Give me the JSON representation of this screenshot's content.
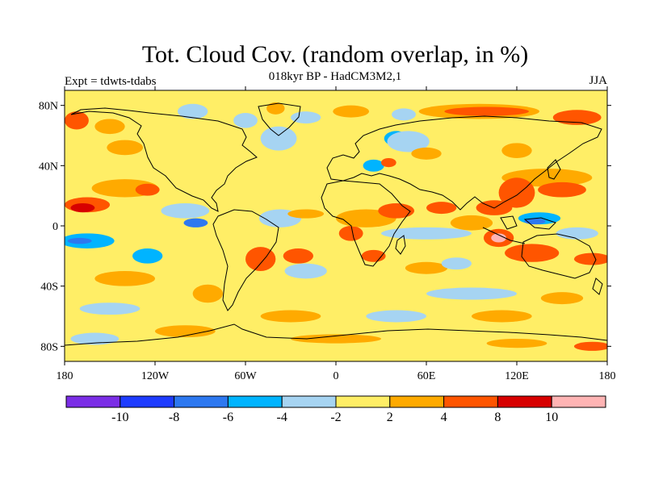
{
  "title": "Tot. Cloud Cov. (random overlap, in %)",
  "subtitle": "018kyr BP - HadCM3M2,1",
  "left_label": "Expt = tdwts-tdabs",
  "right_label": "JJA",
  "map": {
    "lon_range": [
      -180,
      180
    ],
    "lat_range": [
      -90,
      90
    ],
    "x_ticks": [
      {
        "value": -180,
        "label": "180"
      },
      {
        "value": -120,
        "label": "120W"
      },
      {
        "value": -60,
        "label": "60W"
      },
      {
        "value": 0,
        "label": "0"
      },
      {
        "value": 60,
        "label": "60E"
      },
      {
        "value": 120,
        "label": "120E"
      },
      {
        "value": 180,
        "label": "180"
      }
    ],
    "y_ticks": [
      {
        "value": 80,
        "label": "80N"
      },
      {
        "value": 40,
        "label": "40N"
      },
      {
        "value": 0,
        "label": "0"
      },
      {
        "value": -40,
        "label": "40S"
      },
      {
        "value": -80,
        "label": "80S"
      }
    ],
    "background_color": "#ffee66",
    "anomaly_patches": [
      {
        "lon": -172,
        "lat": 70,
        "rx": 8,
        "ry": 6,
        "level": "4to8"
      },
      {
        "lon": -150,
        "lat": 66,
        "rx": 10,
        "ry": 5,
        "level": "2to4"
      },
      {
        "lon": -95,
        "lat": 76,
        "rx": 10,
        "ry": 5,
        "level": "-4to-2"
      },
      {
        "lon": -60,
        "lat": 70,
        "rx": 8,
        "ry": 5,
        "level": "-4to-2"
      },
      {
        "lon": -40,
        "lat": 78,
        "rx": 6,
        "ry": 4,
        "level": "2to4"
      },
      {
        "lon": -20,
        "lat": 72,
        "rx": 10,
        "ry": 4,
        "level": "-4to-2"
      },
      {
        "lon": 10,
        "lat": 76,
        "rx": 12,
        "ry": 4,
        "level": "2to4"
      },
      {
        "lon": 45,
        "lat": 74,
        "rx": 8,
        "ry": 4,
        "level": "-4to-2"
      },
      {
        "lon": 95,
        "lat": 76,
        "rx": 40,
        "ry": 5,
        "level": "2to4"
      },
      {
        "lon": 100,
        "lat": 76,
        "rx": 28,
        "ry": 3,
        "level": "4to8"
      },
      {
        "lon": 160,
        "lat": 72,
        "rx": 16,
        "ry": 5,
        "level": "4to8"
      },
      {
        "lon": -35,
        "lat": 58,
        "rx": 6,
        "ry": 6,
        "level": "-6to-4"
      },
      {
        "lon": -38,
        "lat": 58,
        "rx": 12,
        "ry": 8,
        "level": "-4to-2"
      },
      {
        "lon": 40,
        "lat": 58,
        "rx": 8,
        "ry": 5,
        "level": "-6to-4"
      },
      {
        "lon": 48,
        "lat": 56,
        "rx": 14,
        "ry": 7,
        "level": "-4to-2"
      },
      {
        "lon": -140,
        "lat": 52,
        "rx": 12,
        "ry": 5,
        "level": "2to4"
      },
      {
        "lon": 60,
        "lat": 48,
        "rx": 10,
        "ry": 4,
        "level": "2to4"
      },
      {
        "lon": 120,
        "lat": 50,
        "rx": 10,
        "ry": 5,
        "level": "2to4"
      },
      {
        "lon": 25,
        "lat": 40,
        "rx": 7,
        "ry": 4,
        "level": "-6to-4"
      },
      {
        "lon": 35,
        "lat": 42,
        "rx": 5,
        "ry": 3,
        "level": "4to8"
      },
      {
        "lon": -140,
        "lat": 25,
        "rx": 22,
        "ry": 6,
        "level": "2to4"
      },
      {
        "lon": -165,
        "lat": 14,
        "rx": 15,
        "ry": 5,
        "level": "4to8"
      },
      {
        "lon": -168,
        "lat": 12,
        "rx": 8,
        "ry": 3,
        "level": "8to10"
      },
      {
        "lon": -125,
        "lat": 24,
        "rx": 8,
        "ry": 4,
        "level": "4to8"
      },
      {
        "lon": 140,
        "lat": 32,
        "rx": 30,
        "ry": 6,
        "level": "2to4"
      },
      {
        "lon": 120,
        "lat": 22,
        "rx": 12,
        "ry": 10,
        "level": "4to8"
      },
      {
        "lon": 150,
        "lat": 24,
        "rx": 16,
        "ry": 5,
        "level": "4to8"
      },
      {
        "lon": -100,
        "lat": 10,
        "rx": 16,
        "ry": 5,
        "level": "-4to-2"
      },
      {
        "lon": -93,
        "lat": 2,
        "rx": 8,
        "ry": 3,
        "level": "-8to-6"
      },
      {
        "lon": -35,
        "lat": 5,
        "rx": 8,
        "ry": 4,
        "level": "-8to-6"
      },
      {
        "lon": -37,
        "lat": 5,
        "rx": 14,
        "ry": 6,
        "level": "-4to-2"
      },
      {
        "lon": -20,
        "lat": 8,
        "rx": 12,
        "ry": 3,
        "level": "2to4"
      },
      {
        "lon": 10,
        "lat": -5,
        "rx": 8,
        "ry": 5,
        "level": "4to8"
      },
      {
        "lon": 20,
        "lat": 5,
        "rx": 20,
        "ry": 6,
        "level": "2to4"
      },
      {
        "lon": 40,
        "lat": 10,
        "rx": 12,
        "ry": 5,
        "level": "4to8"
      },
      {
        "lon": 60,
        "lat": -5,
        "rx": 30,
        "ry": 4,
        "level": "-4to-2"
      },
      {
        "lon": 90,
        "lat": 2,
        "rx": 14,
        "ry": 5,
        "level": "2to4"
      },
      {
        "lon": 70,
        "lat": 12,
        "rx": 10,
        "ry": 4,
        "level": "4to8"
      },
      {
        "lon": 105,
        "lat": 12,
        "rx": 12,
        "ry": 5,
        "level": "4to8"
      },
      {
        "lon": 135,
        "lat": 5,
        "rx": 14,
        "ry": 4,
        "level": "-6to-4"
      },
      {
        "lon": 132,
        "lat": 3,
        "rx": 7,
        "ry": 2,
        "level": "-8to-6"
      },
      {
        "lon": 108,
        "lat": -8,
        "rx": 10,
        "ry": 6,
        "level": "4to8"
      },
      {
        "lon": 108,
        "lat": -8,
        "rx": 5,
        "ry": 3,
        "level": "10plus"
      },
      {
        "lon": 160,
        "lat": -5,
        "rx": 14,
        "ry": 4,
        "level": "-4to-2"
      },
      {
        "lon": -165,
        "lat": -10,
        "rx": 18,
        "ry": 5,
        "level": "-6to-4"
      },
      {
        "lon": -170,
        "lat": -10,
        "rx": 8,
        "ry": 2,
        "level": "-8to-6"
      },
      {
        "lon": -125,
        "lat": -20,
        "rx": 10,
        "ry": 5,
        "level": "-6to-4"
      },
      {
        "lon": -140,
        "lat": -35,
        "rx": 20,
        "ry": 5,
        "level": "2to4"
      },
      {
        "lon": -50,
        "lat": -22,
        "rx": 10,
        "ry": 8,
        "level": "4to8"
      },
      {
        "lon": -25,
        "lat": -20,
        "rx": 10,
        "ry": 5,
        "level": "4to8"
      },
      {
        "lon": -20,
        "lat": -30,
        "rx": 14,
        "ry": 5,
        "level": "-4to-2"
      },
      {
        "lon": 25,
        "lat": -20,
        "rx": 8,
        "ry": 4,
        "level": "4to8"
      },
      {
        "lon": 60,
        "lat": -28,
        "rx": 14,
        "ry": 4,
        "level": "2to4"
      },
      {
        "lon": 80,
        "lat": -25,
        "rx": 10,
        "ry": 4,
        "level": "-4to-2"
      },
      {
        "lon": 130,
        "lat": -18,
        "rx": 18,
        "ry": 6,
        "level": "4to8"
      },
      {
        "lon": 170,
        "lat": -22,
        "rx": 12,
        "ry": 4,
        "level": "4to8"
      },
      {
        "lon": -85,
        "lat": -45,
        "rx": 10,
        "ry": 6,
        "level": "2to4"
      },
      {
        "lon": 90,
        "lat": -45,
        "rx": 30,
        "ry": 4,
        "level": "-4to-2"
      },
      {
        "lon": 150,
        "lat": -48,
        "rx": 14,
        "ry": 4,
        "level": "2to4"
      },
      {
        "lon": -150,
        "lat": -55,
        "rx": 20,
        "ry": 4,
        "level": "-4to-2"
      },
      {
        "lon": -30,
        "lat": -60,
        "rx": 20,
        "ry": 4,
        "level": "2to4"
      },
      {
        "lon": 40,
        "lat": -60,
        "rx": 20,
        "ry": 4,
        "level": "-4to-2"
      },
      {
        "lon": 110,
        "lat": -60,
        "rx": 20,
        "ry": 4,
        "level": "2to4"
      },
      {
        "lon": -100,
        "lat": -70,
        "rx": 20,
        "ry": 4,
        "level": "2to4"
      },
      {
        "lon": -160,
        "lat": -75,
        "rx": 16,
        "ry": 4,
        "level": "-4to-2"
      },
      {
        "lon": 0,
        "lat": -75,
        "rx": 30,
        "ry": 3,
        "level": "2to4"
      },
      {
        "lon": 120,
        "lat": -78,
        "rx": 20,
        "ry": 3,
        "level": "2to4"
      },
      {
        "lon": 170,
        "lat": -80,
        "rx": 12,
        "ry": 3,
        "level": "4to8"
      }
    ]
  },
  "colorbar": {
    "colors": [
      "#7b2ee6",
      "#1e3cff",
      "#2d78f0",
      "#00b4ff",
      "#a6d4f2",
      "#ffee66",
      "#ffaa00",
      "#ff5500",
      "#d70000",
      "#ffb4b4"
    ],
    "level_keys": [
      "below-10",
      "-10to-8",
      "-8to-6",
      "-6to-4",
      "-4to-2",
      "-2to2",
      "2to4",
      "4to8",
      "8to10",
      "10plus"
    ],
    "labels": [
      "-10",
      "-8",
      "-6",
      "-4",
      "-2",
      "2",
      "4",
      "8",
      "10"
    ]
  }
}
